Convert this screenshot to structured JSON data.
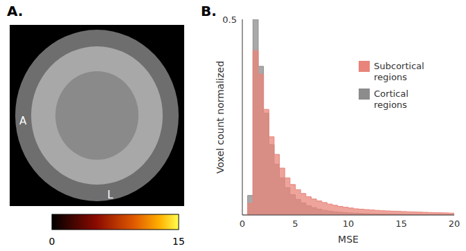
{
  "chart_data": [
    {
      "type": "image",
      "title": "A.",
      "annotations": [
        "A",
        "L"
      ],
      "colorbar": {
        "range": [
          0,
          15
        ],
        "ticks": [
          0,
          15
        ]
      }
    },
    {
      "type": "histogram",
      "title": "B.",
      "x_label": "MSE",
      "y_label": "Voxel count normalized",
      "bins": [
        0,
        0.5,
        1,
        1.5,
        2,
        2.5,
        3,
        3.5,
        4,
        4.5,
        5,
        5.5,
        6,
        6.5,
        7,
        7.5,
        8,
        8.5,
        9,
        9.5,
        10,
        10.5,
        11,
        11.5,
        12,
        12.5,
        13,
        13.5,
        14,
        14.5,
        15,
        15.5,
        16,
        16.5,
        17,
        17.5,
        18,
        18.5,
        19,
        19.5,
        20
      ],
      "series": [
        {
          "name": "Subcortical regions",
          "color": "#e8847a",
          "values": [
            0,
            0.03,
            0.42,
            0.36,
            0.27,
            0.2,
            0.155,
            0.12,
            0.095,
            0.078,
            0.065,
            0.055,
            0.047,
            0.041,
            0.036,
            0.032,
            0.028,
            0.025,
            0.022,
            0.02,
            0.018,
            0.016,
            0.015,
            0.014,
            0.013,
            0.012,
            0.011,
            0.0105,
            0.01,
            0.0095,
            0.009,
            0.0085,
            0.008,
            0.0075,
            0.007,
            0.0065,
            0.006,
            0.0058,
            0.0055,
            0.005
          ]
        },
        {
          "name": "Cortical regions",
          "color": "#8c8c8c",
          "values": [
            0,
            0.05,
            0.5,
            0.38,
            0.26,
            0.18,
            0.13,
            0.095,
            0.07,
            0.052,
            0.04,
            0.031,
            0.024,
            0.019,
            0.015,
            0.012,
            0.01,
            0.0085,
            0.0072,
            0.0062,
            0.0054,
            0.0047,
            0.0041,
            0.0036,
            0.0032,
            0.0029,
            0.0026,
            0.0024,
            0.0022,
            0.002,
            0.0018,
            0.0017,
            0.0016,
            0.0015,
            0.0014,
            0.0013,
            0.0012,
            0.0011,
            0.001,
            0.001
          ]
        }
      ],
      "xlim": [
        0,
        20
      ],
      "xticks": [
        0,
        5,
        10,
        15,
        20
      ],
      "ylim": [
        0,
        0.5
      ],
      "yticks": [
        0.5
      ],
      "legend": "upper right"
    }
  ]
}
